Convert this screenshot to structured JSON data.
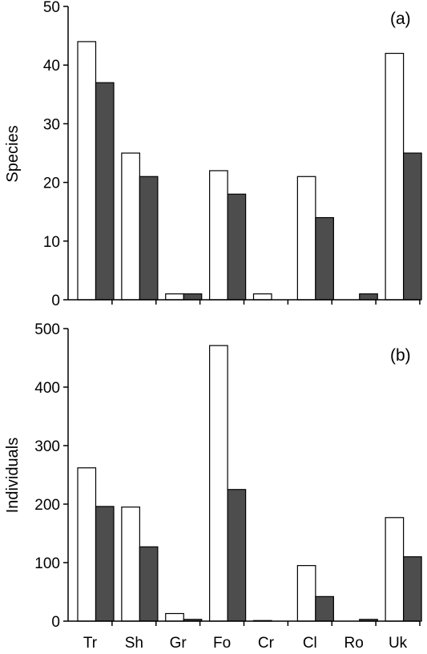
{
  "chart_data": [
    {
      "type": "bar",
      "panel_label": "(a)",
      "ylabel": "Species",
      "ylim": [
        0,
        50
      ],
      "yticks": [
        0,
        10,
        20,
        30,
        40,
        50
      ],
      "categories": [
        "Tr",
        "Sh",
        "Gr",
        "Fo",
        "Cr",
        "Cl",
        "Ro",
        "Uk"
      ],
      "series": [
        {
          "values": [
            44,
            25,
            1,
            22,
            1,
            21,
            0,
            42
          ],
          "color": "#ffffff"
        },
        {
          "values": [
            37,
            21,
            1,
            18,
            0,
            14,
            1,
            25
          ],
          "color": "#4d4d4d"
        }
      ],
      "grid": false
    },
    {
      "type": "bar",
      "panel_label": "(b)",
      "ylabel": "Individuals",
      "ylim": [
        0,
        500
      ],
      "yticks": [
        0,
        100,
        200,
        300,
        400,
        500
      ],
      "categories": [
        "Tr",
        "Sh",
        "Gr",
        "Fo",
        "Cr",
        "Cl",
        "Ro",
        "Uk"
      ],
      "series": [
        {
          "values": [
            262,
            195,
            13,
            471,
            1,
            95,
            0,
            177
          ],
          "color": "#ffffff"
        },
        {
          "values": [
            196,
            127,
            3,
            225,
            0,
            42,
            3,
            110
          ],
          "color": "#4d4d4d"
        }
      ],
      "grid": false
    }
  ]
}
